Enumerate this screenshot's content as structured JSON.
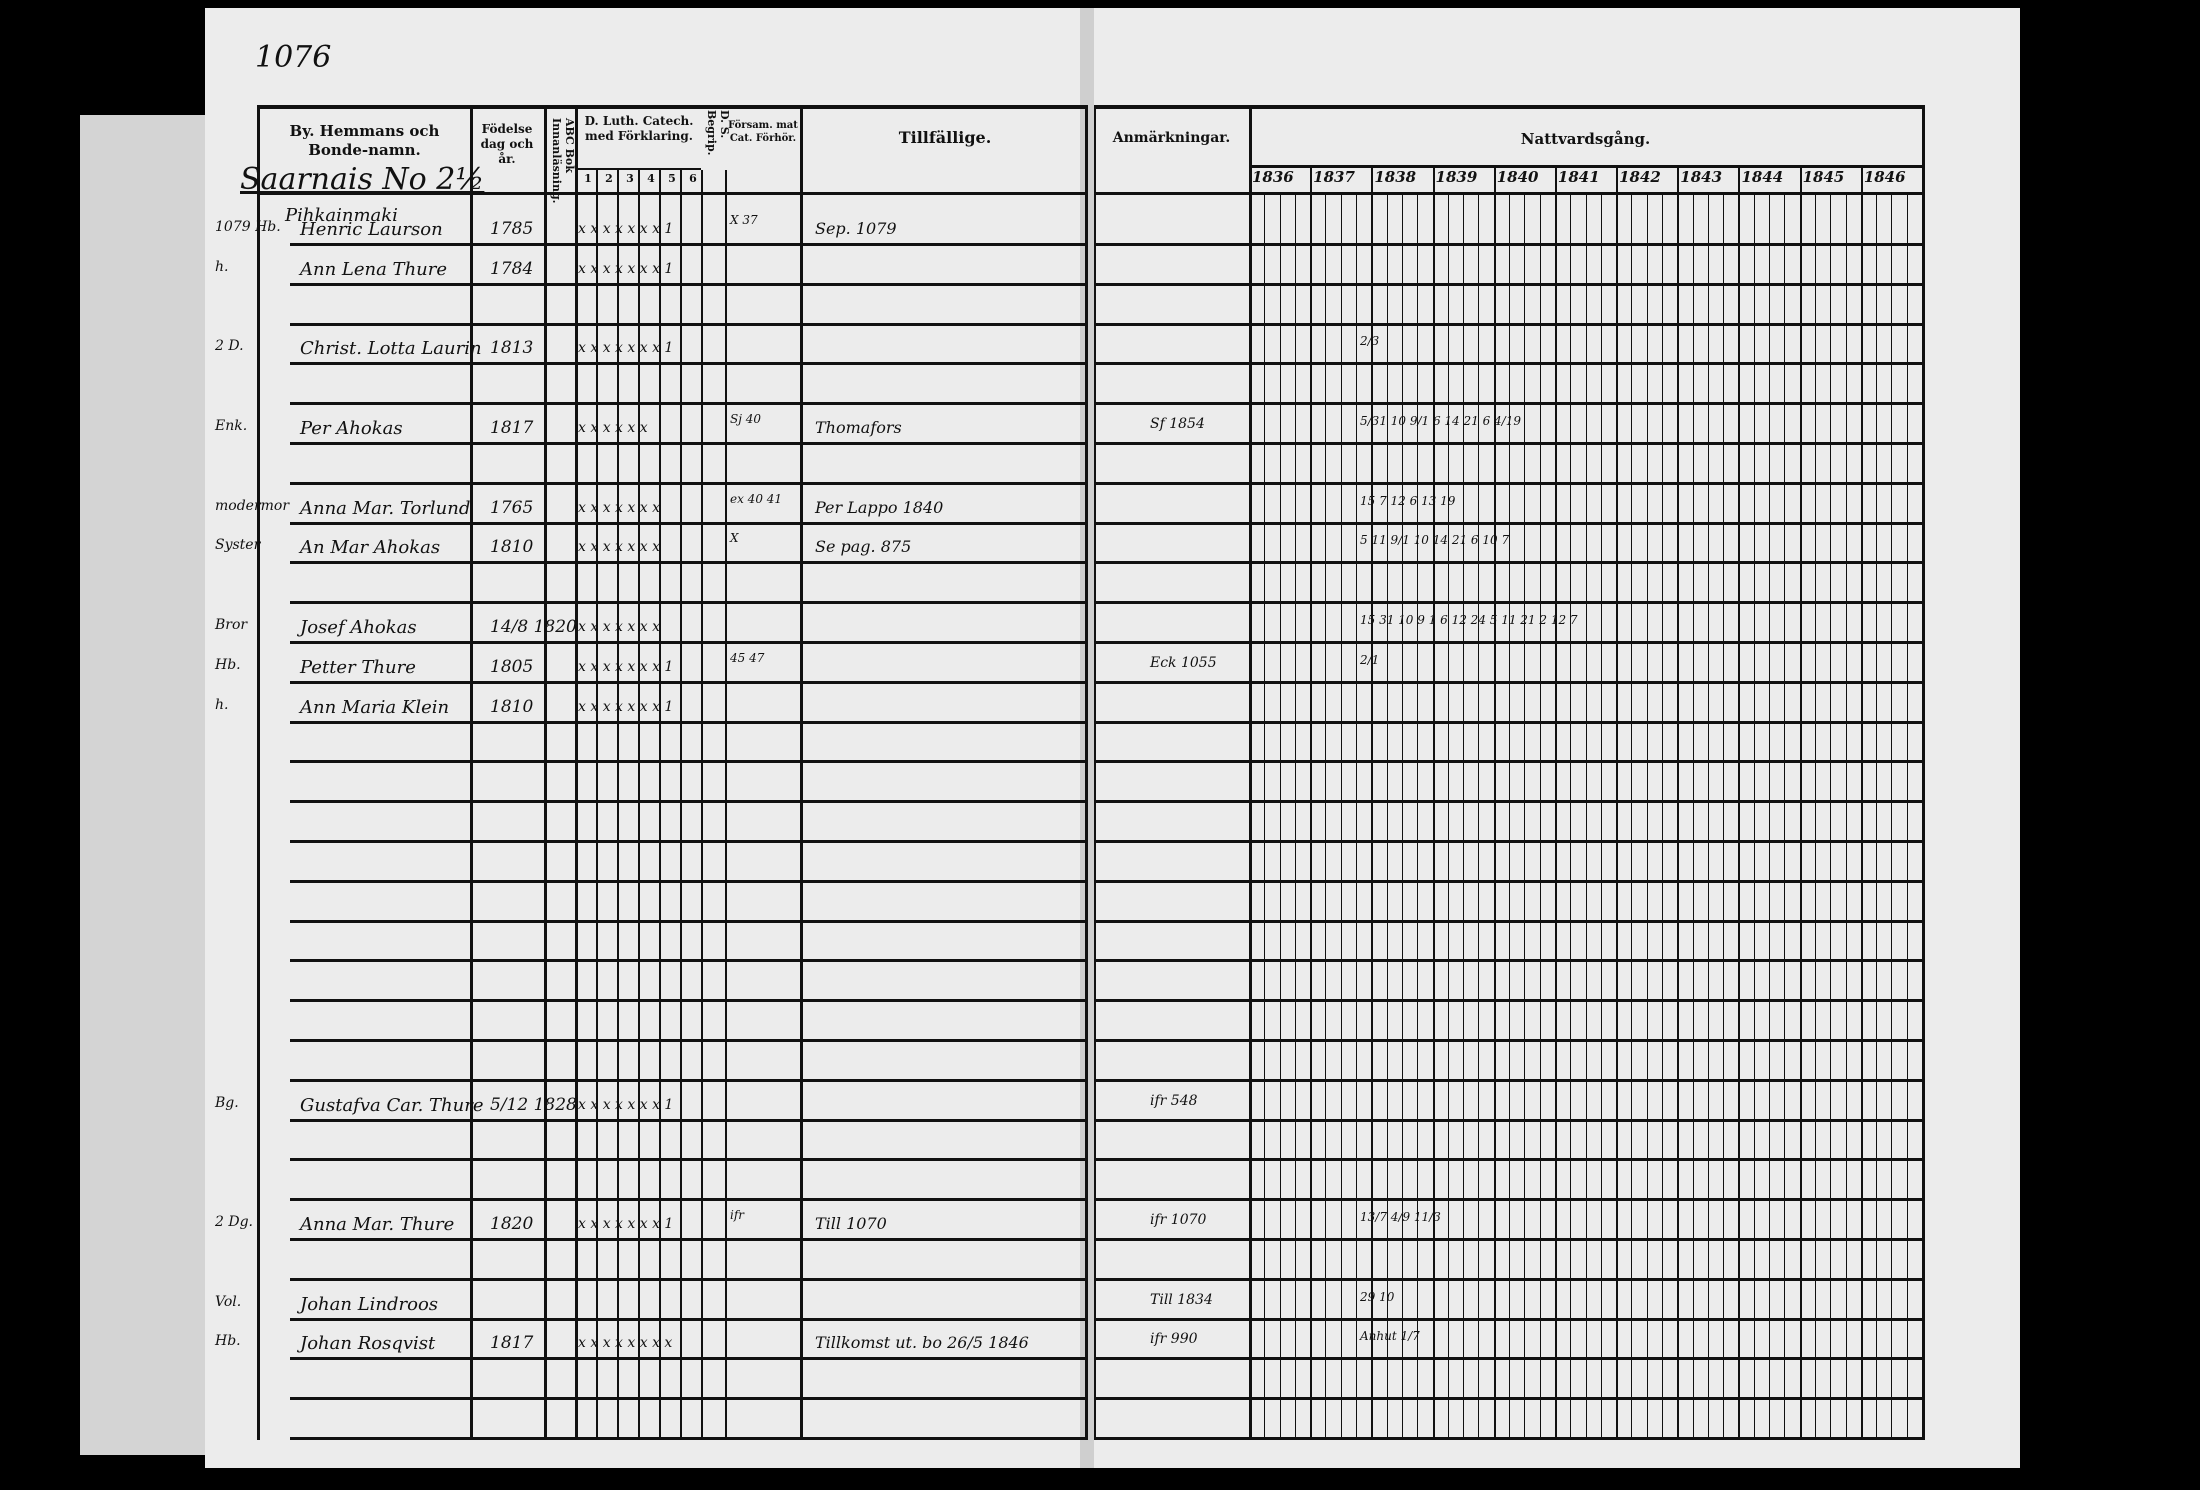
{
  "page_number": "1076",
  "headers": {
    "name": "By. Hemmans och Bonde-namn.",
    "birth": "Födelse dag och år.",
    "abc": "ABC Bok Innanläsning.",
    "catechism": "D. Luth. Catech. med Förklaring.",
    "catechism_columns": [
      "1",
      "2",
      "3",
      "4",
      "5",
      "6"
    ],
    "ds": "D. S. Begrip.",
    "forsam": "Försam. mat Cat. Förhör.",
    "tillfallige": "Tillfällige.",
    "anmarkningar": "Anmärkningar.",
    "nattvard": "Nattvardsgång.",
    "years": [
      "1836",
      "1837",
      "1838",
      "1839",
      "1840",
      "1841",
      "1842",
      "1843",
      "1844",
      "1845",
      "1846"
    ]
  },
  "village": "Saarnais No 2½",
  "farm": "Pihkainmaki",
  "entries": [
    {
      "prefix": "1079 Hb.",
      "name": "Henric Laurson",
      "birth": "1785",
      "marks": "x x x x x x x 1",
      "forsam": "X 37",
      "tillfallige": "Sep. 1079",
      "anm": "",
      "nattvard": ""
    },
    {
      "prefix": "h.",
      "name": "Ann Lena Thure",
      "birth": "1784",
      "marks": "x x x x x x x 1",
      "forsam": "",
      "tillfallige": "",
      "anm": "",
      "nattvard": ""
    },
    {
      "prefix": "2 D.",
      "name": "Christ. Lotta Laurin",
      "birth": "1813",
      "marks": "x x x x x x x 1",
      "forsam": "",
      "tillfallige": "",
      "anm": "",
      "nattvard": "2/3"
    },
    {
      "prefix": "Enk.",
      "name": "Per Ahokas",
      "birth": "1817",
      "marks": "x x x x x x",
      "forsam": "Sj 40",
      "tillfallige": "Thomafors",
      "anm": "Sf 1854",
      "nattvard": "5/31 10   9/1 6 14   21 6   4/19"
    },
    {
      "prefix": "modermor",
      "name": "Anna Mar. Torlund",
      "birth": "1765",
      "marks": "x x x x x x x",
      "forsam": "ex 40 41",
      "tillfallige": "Per Lappo 1840",
      "anm": "",
      "nattvard": "15 7   12 6   13 19"
    },
    {
      "prefix": "Syster",
      "name": "An Mar Ahokas",
      "birth": "1810",
      "marks": "x x x x x x x",
      "forsam": "X",
      "tillfallige": "Se pag. 875",
      "anm": "",
      "nattvard": "5 11   9/1 10 14   21 6   10 7"
    },
    {
      "prefix": "Bror",
      "name": "Josef Ahokas",
      "birth": "14/8 1820",
      "marks": "x x x x x x x",
      "forsam": "",
      "tillfallige": "",
      "anm": "",
      "nattvard": "15 31 10   9 1 6 12   24 5 11 21 2   12 7"
    },
    {
      "prefix": "Hb.",
      "name": "Petter Thure",
      "birth": "1805",
      "marks": "x x x x x x x 1",
      "forsam": "45 47",
      "tillfallige": "",
      "anm": "Eck 1055",
      "nattvard": "2/1"
    },
    {
      "prefix": "h.",
      "name": "Ann Maria Klein",
      "birth": "1810",
      "marks": "x x x x x x x 1",
      "forsam": "",
      "tillfallige": "",
      "anm": "",
      "nattvard": ""
    },
    {
      "prefix": "Bg.",
      "name": "Gustafva Car. Thure",
      "birth": "5/12 1828",
      "marks": "x x x x x x x 1",
      "forsam": "",
      "tillfallige": "",
      "anm": "ifr 548",
      "nattvard": ""
    },
    {
      "prefix": "2 Dg.",
      "name": "Anna Mar. Thure",
      "birth": "1820",
      "marks": "x x x x x x x 1",
      "forsam": "ifr",
      "tillfallige": "Till 1070",
      "anm": "ifr 1070",
      "nattvard": "13/7 4/9  11/3"
    },
    {
      "prefix": "Vol.",
      "name": "Johan Lindroos",
      "birth": "",
      "marks": "",
      "forsam": "",
      "tillfallige": "",
      "anm": "Till 1834",
      "nattvard": "29 10"
    },
    {
      "prefix": "Hb.",
      "name": "Johan Rosqvist",
      "birth": "1817",
      "marks": "x x x x x x x x",
      "forsam": "",
      "tillfallige": "Tillkomst ut. bo 26/5 1846",
      "anm": "ifr 990",
      "nattvard": "Anhut 1/7"
    }
  ]
}
